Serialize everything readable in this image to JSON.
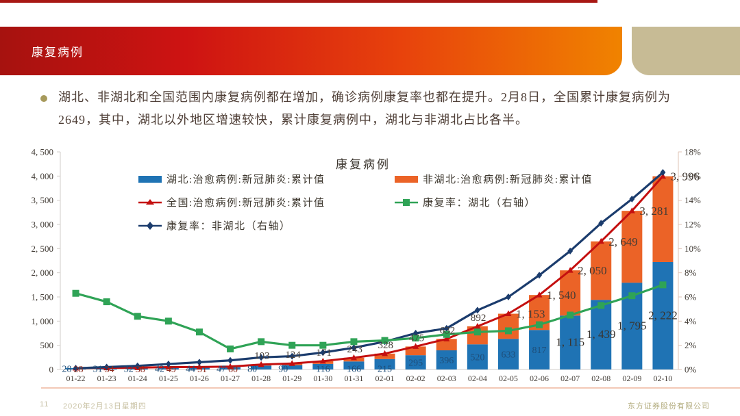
{
  "header": {
    "title": "康复病例"
  },
  "bullet": {
    "line1": "湖北、非湖北和全国范围内康复病例都在增加，确诊病例康复率也都在提升。2月8日，全国累计康复病例为",
    "line2": "2649，其中，湖北以外地区增速较快，累计康复病例中，湖北与非湖北占比各半。"
  },
  "footer": {
    "page_number": "11",
    "date": "2020年2月13日星期四",
    "company": "东方证券股份有限公司"
  },
  "colors": {
    "hubei_bar": "#1f73b4",
    "non_hubei_bar": "#eb6327",
    "national_line": "#c40f0f",
    "hubei_rate_line": "#2fa356",
    "non_hubei_rate_line": "#1b3c6d",
    "banner_left": "#a6120f",
    "banner_right": "#f08300",
    "accent_block": "#c7bb95"
  },
  "chart_data": {
    "type": "bar",
    "subtype": "stacked bars with overlay lines (dual axis)",
    "title": "康复病例",
    "categories": [
      "01-22",
      "01-23",
      "01-24",
      "01-25",
      "01-26",
      "01-27",
      "01-28",
      "01-29",
      "01-30",
      "01-31",
      "02-01",
      "02-02",
      "02-03",
      "02-04",
      "02-05",
      "02-06",
      "02-07",
      "02-08",
      "02-09",
      "02-10"
    ],
    "series": [
      {
        "name": "湖北:治愈病例:新冠肺炎:累计值",
        "type": "bar",
        "stack": "cured",
        "axis": "left",
        "color": "#1f73b4",
        "values": [
          28,
          31,
          32,
          42,
          44,
          47,
          80,
          90,
          116,
          166,
          215,
          295,
          396,
          520,
          633,
          817,
          1115,
          1439,
          1795,
          2222
        ]
      },
      {
        "name": "非湖北:治愈病例:新冠肺炎:累计值",
        "type": "bar",
        "stack": "cured",
        "axis": "left",
        "color": "#eb6327",
        "values": [
          0,
          3,
          6,
          7,
          7,
          13,
          23,
          34,
          55,
          77,
          113,
          180,
          236,
          372,
          520,
          723,
          935,
          1210,
          1486,
          1774
        ]
      },
      {
        "name": "全国:治愈病例:新冠肺炎:累计值",
        "type": "line",
        "marker": "triangle",
        "axis": "left",
        "color": "#c40f0f",
        "values": [
          28,
          34,
          38,
          49,
          51,
          60,
          103,
          124,
          171,
          243,
          328,
          475,
          632,
          892,
          1153,
          1540,
          2050,
          2649,
          3281,
          3996
        ]
      },
      {
        "name": "康复率：湖北（右轴）",
        "type": "line",
        "marker": "square",
        "axis": "right",
        "color": "#2fa356",
        "values": [
          6.3,
          5.6,
          4.4,
          4.0,
          3.1,
          1.7,
          2.3,
          2.0,
          2.0,
          2.3,
          2.4,
          2.6,
          2.9,
          3.1,
          3.2,
          3.7,
          4.5,
          5.3,
          6.1,
          7.0
        ]
      },
      {
        "name": "康复率：非湖北（右轴）",
        "type": "line",
        "marker": "diamond",
        "axis": "right",
        "color": "#1b3c6d",
        "values": [
          0.1,
          0.2,
          0.3,
          0.45,
          0.6,
          0.75,
          1.0,
          1.1,
          1.4,
          1.8,
          2.3,
          3.0,
          3.4,
          4.9,
          6.0,
          7.8,
          9.8,
          12.1,
          14.1,
          16.3
        ]
      }
    ],
    "left_axis": {
      "min": 0,
      "max": 4500,
      "step": 500
    },
    "right_axis": {
      "min": 0,
      "max": 18,
      "step": 2,
      "suffix": "%"
    },
    "legend_position": "top-left two columns",
    "grid": "off",
    "labeled_series": [
      "湖北:治愈病例:新冠肺炎:累计值",
      "全国:治愈病例:新冠肺炎:累计值"
    ]
  }
}
